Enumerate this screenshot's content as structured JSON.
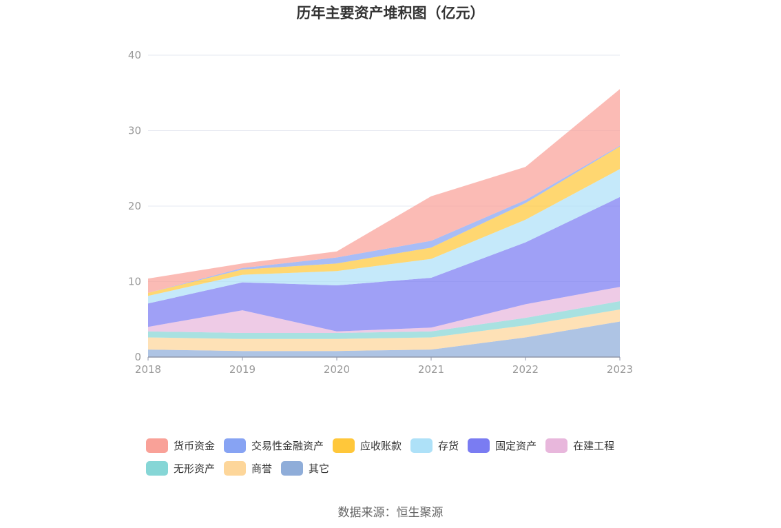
{
  "chart_data": {
    "type": "area",
    "stacked": true,
    "title": "历年主要资产堆积图（亿元）",
    "source": "数据来源：恒生聚源",
    "x": [
      "2018",
      "2019",
      "2020",
      "2021",
      "2022",
      "2023"
    ],
    "ylim": [
      0,
      40
    ],
    "y_ticks": [
      "0",
      "10",
      "20",
      "30",
      "40"
    ],
    "grid": true,
    "legend_position": "bottom",
    "series": [
      {
        "name": "其它",
        "color": "#8fadd9",
        "values": [
          1.0,
          0.8,
          0.8,
          1.0,
          2.6,
          4.7
        ]
      },
      {
        "name": "商誉",
        "color": "#fdd69a",
        "values": [
          1.6,
          1.6,
          1.6,
          1.6,
          1.6,
          1.6
        ]
      },
      {
        "name": "无形资产",
        "color": "#86d6d6",
        "values": [
          0.8,
          0.8,
          0.8,
          0.8,
          1.0,
          1.1
        ]
      },
      {
        "name": "在建工程",
        "color": "#e8b7dc",
        "values": [
          0.6,
          3.0,
          0.2,
          0.5,
          1.8,
          1.9
        ]
      },
      {
        "name": "固定资产",
        "color": "#7a7cf2",
        "values": [
          3.1,
          3.7,
          6.1,
          6.6,
          8.2,
          11.9
        ]
      },
      {
        "name": "存货",
        "color": "#aee1f8",
        "values": [
          1.0,
          1.0,
          1.9,
          2.5,
          3.0,
          3.7
        ]
      },
      {
        "name": "应收账款",
        "color": "#ffc73a",
        "values": [
          0.4,
          0.7,
          1.0,
          1.5,
          2.2,
          3.0
        ]
      },
      {
        "name": "交易性金融资产",
        "color": "#87a3f3",
        "values": [
          0.0,
          0.2,
          0.8,
          0.9,
          0.4,
          0.1
        ]
      },
      {
        "name": "货币资金",
        "color": "#f9a198",
        "values": [
          1.9,
          0.6,
          0.8,
          5.9,
          4.4,
          7.5
        ]
      }
    ]
  },
  "legend": {
    "row1": [
      "货币资金",
      "交易性金融资产",
      "应收账款",
      "存货",
      "固定资产",
      "在建工程"
    ],
    "row2": [
      "无形资产",
      "商誉",
      "其它"
    ]
  }
}
